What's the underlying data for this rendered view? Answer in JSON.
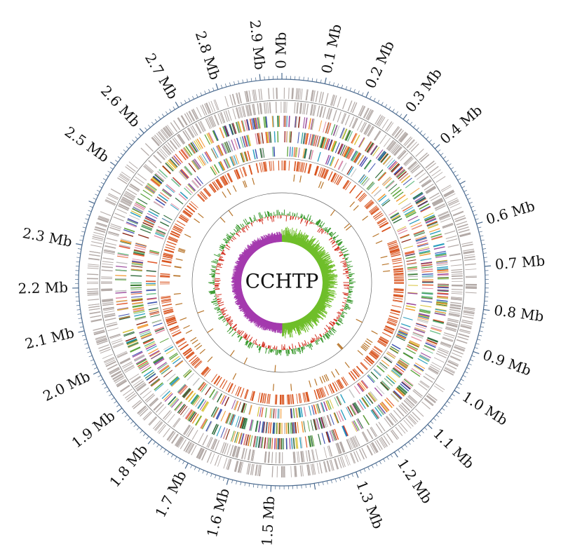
{
  "center_label": "CCHTP",
  "scale_labels": [
    "0 Mb",
    "0.1 Mb",
    "0.2 Mb",
    "0.3 Mb",
    "0.4 Mb",
    "0.6 Mb",
    "0.7 Mb",
    "0.8 Mb",
    "0.9 Mb",
    "1.0 Mb",
    "1.1 Mb",
    "1.2 Mb",
    "1.3 Mb",
    "1.5 Mb",
    "1.6 Mb",
    "1.7 Mb",
    "1.8 Mb",
    "1.9 Mb",
    "2.0 Mb",
    "2.1 Mb",
    "2.2 Mb",
    "2.3 Mb",
    "2.5 Mb",
    "2.6 Mb",
    "2.7 Mb",
    "2.8 Mb",
    "2.9 Mb"
  ],
  "scale_positions_mb": [
    0,
    0.1,
    0.2,
    0.3,
    0.4,
    0.6,
    0.7,
    0.8,
    0.9,
    1.0,
    1.1,
    1.2,
    1.3,
    1.5,
    1.6,
    1.7,
    1.8,
    1.9,
    2.0,
    2.1,
    2.2,
    2.3,
    2.5,
    2.6,
    2.7,
    2.8,
    2.9
  ],
  "genome_length_mb": 2.95,
  "colors": {
    "axis": "#4a6a8f",
    "gray_track": "#b3aaa7",
    "cog_palette": [
      "#5aa33a",
      "#e25b2e",
      "#2a9fbf",
      "#9b4a9c",
      "#d8c23a",
      "#8b2a1a",
      "#3a4fb0",
      "#e08fa8",
      "#6fbf8a",
      "#c0c0c0",
      "#f29c38",
      "#2d6b3a"
    ],
    "rna_red": "#d9541f",
    "rna_brown": "#b8752a",
    "gc_green": "#3a9a2e",
    "gc_red": "#d43526",
    "skew_green": "#6fbe2a",
    "skew_purple": "#a43aae",
    "ring_line": "#666666"
  }
}
